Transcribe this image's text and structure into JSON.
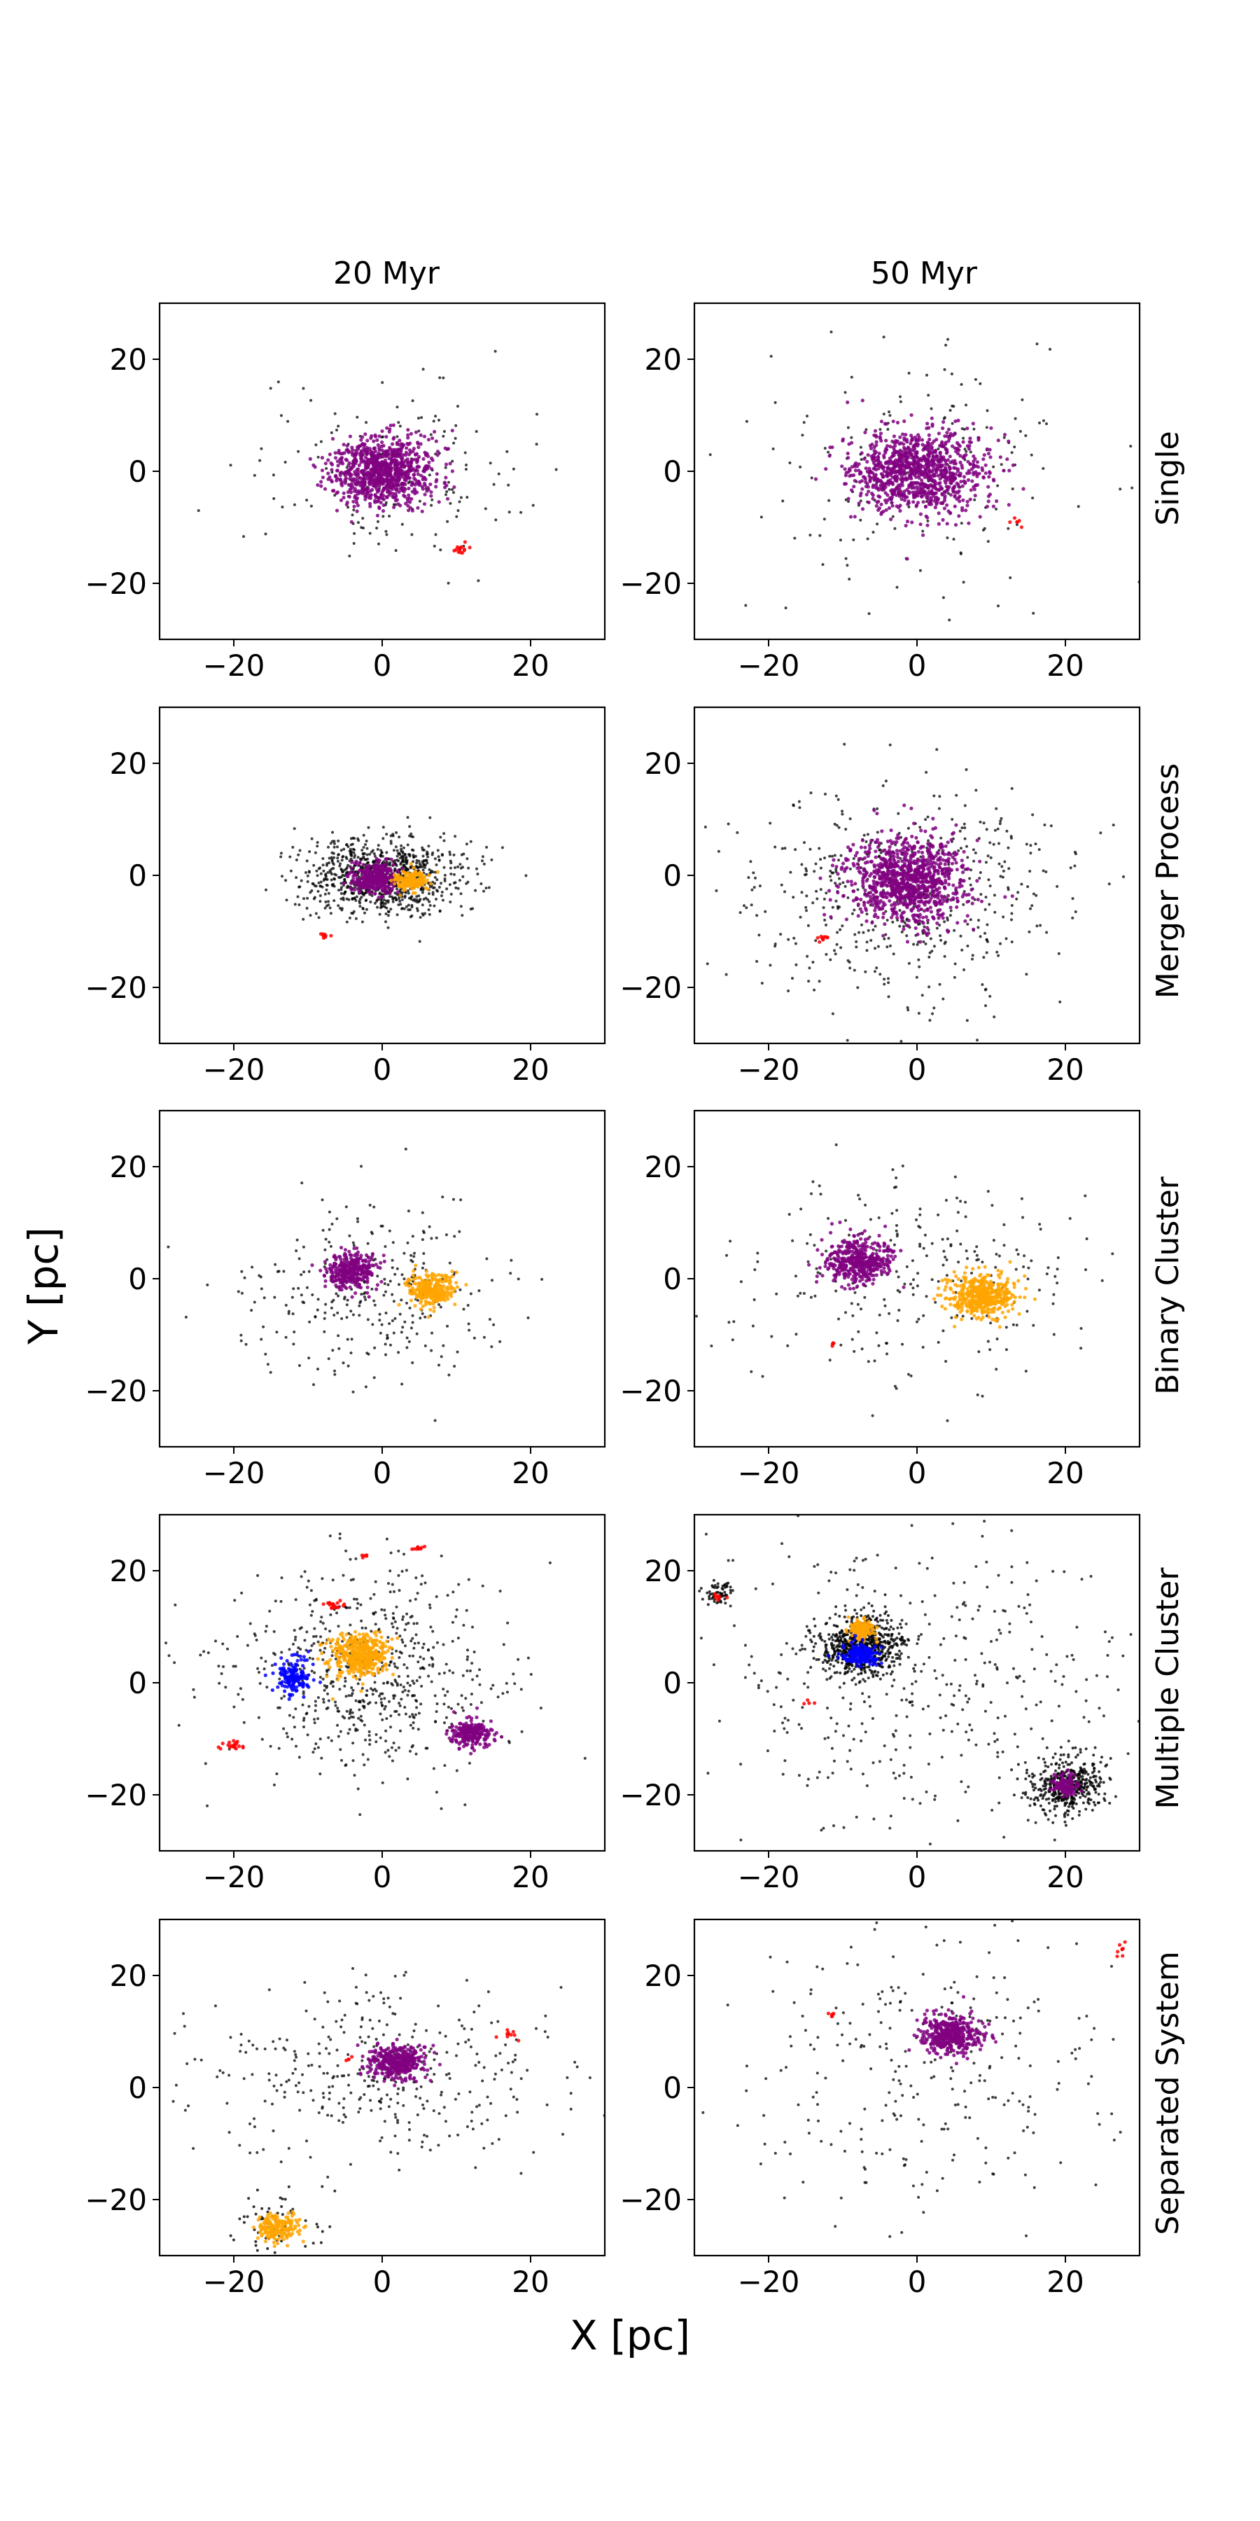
{
  "figure": {
    "xlabel": "X [pc]",
    "ylabel": "Y [pc]",
    "column_titles": [
      "20 Myr",
      "50 Myr"
    ],
    "row_labels": [
      "Single",
      "Merger Process",
      "Binary Cluster",
      "Multiple Cluster",
      "Separated System"
    ]
  },
  "colors": {
    "field": "#000000",
    "purple": "#800080",
    "orange": "#ffa500",
    "red": "#ff0000",
    "blue": "#0000ff"
  },
  "chart_data": [
    {
      "type": "scatter",
      "row": "Single",
      "time": "20 Myr",
      "xlim": [
        -30,
        30
      ],
      "ylim": [
        -30,
        30
      ],
      "xticks": [
        -20,
        0,
        20
      ],
      "yticks": [
        -20,
        0,
        20
      ],
      "tick_labels_x": [
        "−20",
        "0",
        "20"
      ],
      "tick_labels_y": [
        "−20",
        "0",
        "20"
      ],
      "groups": [
        {
          "color": "purple",
          "center": [
            0,
            0
          ],
          "sigma": [
            3.5,
            3.0
          ],
          "n": 900
        },
        {
          "color": "red",
          "center": [
            10.5,
            -14
          ],
          "sigma": [
            0.7,
            0.4
          ],
          "n": 14
        }
      ],
      "field": {
        "center": [
          0,
          0
        ],
        "sigma": [
          9,
          8
        ],
        "n": 160
      }
    },
    {
      "type": "scatter",
      "row": "Single",
      "time": "50 Myr",
      "xlim": [
        -30,
        30
      ],
      "ylim": [
        -30,
        30
      ],
      "xticks": [
        -20,
        0,
        20
      ],
      "yticks": [
        -20,
        0,
        20
      ],
      "tick_labels_x": [
        "−20",
        "0",
        "20"
      ],
      "tick_labels_y": [
        "−20",
        "0",
        "20"
      ],
      "groups": [
        {
          "color": "purple",
          "center": [
            0,
            0
          ],
          "sigma": [
            4.5,
            3.8
          ],
          "n": 1000
        },
        {
          "color": "red",
          "center": [
            13.5,
            -9
          ],
          "sigma": [
            0.4,
            0.4
          ],
          "n": 6
        }
      ],
      "field": {
        "center": [
          0,
          0
        ],
        "sigma": [
          12,
          11
        ],
        "n": 170
      }
    },
    {
      "type": "scatter",
      "row": "Merger Process",
      "time": "20 Myr",
      "xlim": [
        -30,
        30
      ],
      "ylim": [
        -30,
        30
      ],
      "xticks": [
        -20,
        0,
        20
      ],
      "yticks": [
        -20,
        0,
        20
      ],
      "tick_labels_x": [
        "−20",
        "0",
        "20"
      ],
      "tick_labels_y": [
        "−20",
        "0",
        "20"
      ],
      "groups": [
        {
          "color": "purple",
          "center": [
            -1,
            -0.5
          ],
          "sigma": [
            1.5,
            1.3
          ],
          "n": 350
        },
        {
          "color": "orange",
          "center": [
            4,
            -1
          ],
          "sigma": [
            1.0,
            0.8
          ],
          "n": 160
        },
        {
          "color": "red",
          "center": [
            -8,
            -11
          ],
          "sigma": [
            0.4,
            0.4
          ],
          "n": 8
        }
      ],
      "field": {
        "center": [
          0,
          0
        ],
        "sigma": [
          5.5,
          3.5
        ],
        "n": 900
      }
    },
    {
      "type": "scatter",
      "row": "Merger Process",
      "time": "50 Myr",
      "xlim": [
        -30,
        30
      ],
      "ylim": [
        -30,
        30
      ],
      "xticks": [
        -20,
        0,
        20
      ],
      "yticks": [
        -20,
        0,
        20
      ],
      "tick_labels_x": [
        "−20",
        "0",
        "20"
      ],
      "tick_labels_y": [
        "−20",
        "0",
        "20"
      ],
      "groups": [
        {
          "color": "purple",
          "center": [
            -1,
            -1
          ],
          "sigma": [
            4.0,
            4.0
          ],
          "n": 1000
        },
        {
          "color": "red",
          "center": [
            -13,
            -11
          ],
          "sigma": [
            0.6,
            0.4
          ],
          "n": 10
        }
      ],
      "field": {
        "center": [
          -1,
          -3
        ],
        "sigma": [
          11,
          10
        ],
        "n": 500
      }
    },
    {
      "type": "scatter",
      "row": "Binary Cluster",
      "time": "20 Myr",
      "xlim": [
        -30,
        30
      ],
      "ylim": [
        -30,
        30
      ],
      "xticks": [
        -20,
        0,
        20
      ],
      "yticks": [
        -20,
        0,
        20
      ],
      "tick_labels_x": [
        "−20",
        "0",
        "20"
      ],
      "tick_labels_y": [
        "−20",
        "0",
        "20"
      ],
      "groups": [
        {
          "color": "purple",
          "center": [
            -4,
            1.5
          ],
          "sigma": [
            1.6,
            1.6
          ],
          "n": 330
        },
        {
          "color": "orange",
          "center": [
            6.5,
            -2
          ],
          "sigma": [
            1.6,
            1.4
          ],
          "n": 280
        }
      ],
      "field": {
        "center": [
          -2,
          -3
        ],
        "sigma": [
          9,
          8
        ],
        "n": 300
      }
    },
    {
      "type": "scatter",
      "row": "Binary Cluster",
      "time": "50 Myr",
      "xlim": [
        -30,
        30
      ],
      "ylim": [
        -30,
        30
      ],
      "xticks": [
        -20,
        0,
        20
      ],
      "yticks": [
        -20,
        0,
        20
      ],
      "tick_labels_x": [
        "−20",
        "0",
        "20"
      ],
      "tick_labels_y": [
        "−20",
        "0",
        "20"
      ],
      "groups": [
        {
          "color": "purple",
          "center": [
            -8,
            3
          ],
          "sigma": [
            2.3,
            2.0
          ],
          "n": 450
        },
        {
          "color": "orange",
          "center": [
            9,
            -3
          ],
          "sigma": [
            2.3,
            1.9
          ],
          "n": 450
        },
        {
          "color": "red",
          "center": [
            -11.5,
            -11.5
          ],
          "sigma": [
            0.3,
            0.3
          ],
          "n": 5
        }
      ],
      "field": {
        "center": [
          0,
          0
        ],
        "sigma": [
          12,
          9
        ],
        "n": 260
      }
    },
    {
      "type": "scatter",
      "row": "Multiple Cluster",
      "time": "20 Myr",
      "xlim": [
        -30,
        30
      ],
      "ylim": [
        -30,
        30
      ],
      "xticks": [
        -20,
        0,
        20
      ],
      "yticks": [
        -20,
        0,
        20
      ],
      "tick_labels_x": [
        "−20",
        "0",
        "20"
      ],
      "tick_labels_y": [
        "−20",
        "0",
        "20"
      ],
      "groups": [
        {
          "color": "orange",
          "center": [
            -3,
            5
          ],
          "sigma": [
            2.0,
            2.0
          ],
          "n": 420
        },
        {
          "color": "blue",
          "center": [
            -12,
            1
          ],
          "sigma": [
            1.2,
            1.6
          ],
          "n": 150
        },
        {
          "color": "purple",
          "center": [
            12,
            -9
          ],
          "sigma": [
            1.5,
            1.2
          ],
          "n": 240
        },
        {
          "color": "red",
          "center": [
            -20,
            -11
          ],
          "sigma": [
            0.7,
            0.5
          ],
          "n": 20
        },
        {
          "color": "red",
          "center": [
            -6.5,
            14
          ],
          "sigma": [
            0.7,
            0.5
          ],
          "n": 18
        },
        {
          "color": "red",
          "center": [
            5,
            24
          ],
          "sigma": [
            0.6,
            0.3
          ],
          "n": 10
        },
        {
          "color": "red",
          "center": [
            -2.5,
            22.5
          ],
          "sigma": [
            0.3,
            0.3
          ],
          "n": 5
        }
      ],
      "field": {
        "center": [
          -2,
          2
        ],
        "sigma": [
          9,
          9
        ],
        "n": 650
      }
    },
    {
      "type": "scatter",
      "row": "Multiple Cluster",
      "time": "50 Myr",
      "xlim": [
        -30,
        30
      ],
      "ylim": [
        -30,
        30
      ],
      "xticks": [
        -20,
        0,
        20
      ],
      "yticks": [
        -20,
        0,
        20
      ],
      "tick_labels_x": [
        "−20",
        "0",
        "20"
      ],
      "tick_labels_y": [
        "−20",
        "0",
        "20"
      ],
      "groups": [
        {
          "color": "orange",
          "center": [
            -7.5,
            9.5
          ],
          "sigma": [
            0.9,
            0.9
          ],
          "n": 140
        },
        {
          "color": "blue",
          "center": [
            -7.5,
            5
          ],
          "sigma": [
            1.2,
            0.9
          ],
          "n": 170
        },
        {
          "color": "purple",
          "center": [
            20,
            -18.5
          ],
          "sigma": [
            0.9,
            0.9
          ],
          "n": 110
        },
        {
          "color": "red",
          "center": [
            -26.5,
            15.5
          ],
          "sigma": [
            0.4,
            0.4
          ],
          "n": 8
        },
        {
          "color": "red",
          "center": [
            -14.5,
            -3.5
          ],
          "sigma": [
            0.3,
            0.2
          ],
          "n": 4
        }
      ],
      "field": {
        "center": [
          0,
          0
        ],
        "sigma": [
          15,
          14
        ],
        "n": 420
      },
      "field_clumps": [
        {
          "center": [
            -7.5,
            6.5
          ],
          "sigma": [
            2.6,
            2.6
          ],
          "n": 650
        },
        {
          "center": [
            20,
            -18.5
          ],
          "sigma": [
            2.6,
            2.6
          ],
          "n": 420
        },
        {
          "center": [
            -26.5,
            16
          ],
          "sigma": [
            1.0,
            1.0
          ],
          "n": 60
        }
      ]
    },
    {
      "type": "scatter",
      "row": "Separated System",
      "time": "20 Myr",
      "xlim": [
        -30,
        30
      ],
      "ylim": [
        -30,
        30
      ],
      "xticks": [
        -20,
        0,
        20
      ],
      "yticks": [
        -20,
        0,
        20
      ],
      "tick_labels_x": [
        "−20",
        "0",
        "20"
      ],
      "tick_labels_y": [
        "−20",
        "0",
        "20"
      ],
      "groups": [
        {
          "color": "purple",
          "center": [
            2,
            4.5
          ],
          "sigma": [
            1.8,
            1.5
          ],
          "n": 380
        },
        {
          "color": "orange",
          "center": [
            -14,
            -25
          ],
          "sigma": [
            1.3,
            1.2
          ],
          "n": 180
        },
        {
          "color": "red",
          "center": [
            17,
            9.5
          ],
          "sigma": [
            0.6,
            0.4
          ],
          "n": 10
        },
        {
          "color": "red",
          "center": [
            -4.5,
            5
          ],
          "sigma": [
            0.3,
            0.2
          ],
          "n": 4
        }
      ],
      "field": {
        "center": [
          0,
          2
        ],
        "sigma": [
          12,
          8
        ],
        "n": 360
      },
      "field_clumps": [
        {
          "center": [
            -14,
            -24
          ],
          "sigma": [
            3.0,
            3.0
          ],
          "n": 60
        }
      ]
    },
    {
      "type": "scatter",
      "row": "Separated System",
      "time": "50 Myr",
      "xlim": [
        -30,
        30
      ],
      "ylim": [
        -30,
        30
      ],
      "xticks": [
        -20,
        0,
        20
      ],
      "yticks": [
        -20,
        0,
        20
      ],
      "tick_labels_x": [
        "−20",
        "0",
        "20"
      ],
      "tick_labels_y": [
        "−20",
        "0",
        "20"
      ],
      "groups": [
        {
          "color": "purple",
          "center": [
            4.5,
            9.5
          ],
          "sigma": [
            2.0,
            1.7
          ],
          "n": 420
        },
        {
          "color": "red",
          "center": [
            -11.5,
            13
          ],
          "sigma": [
            0.3,
            0.3
          ],
          "n": 6
        },
        {
          "color": "red",
          "center": [
            27.5,
            24.5
          ],
          "sigma": [
            0.4,
            0.6
          ],
          "n": 8
        }
      ],
      "field": {
        "center": [
          2,
          4
        ],
        "sigma": [
          13,
          13
        ],
        "n": 280
      }
    }
  ]
}
